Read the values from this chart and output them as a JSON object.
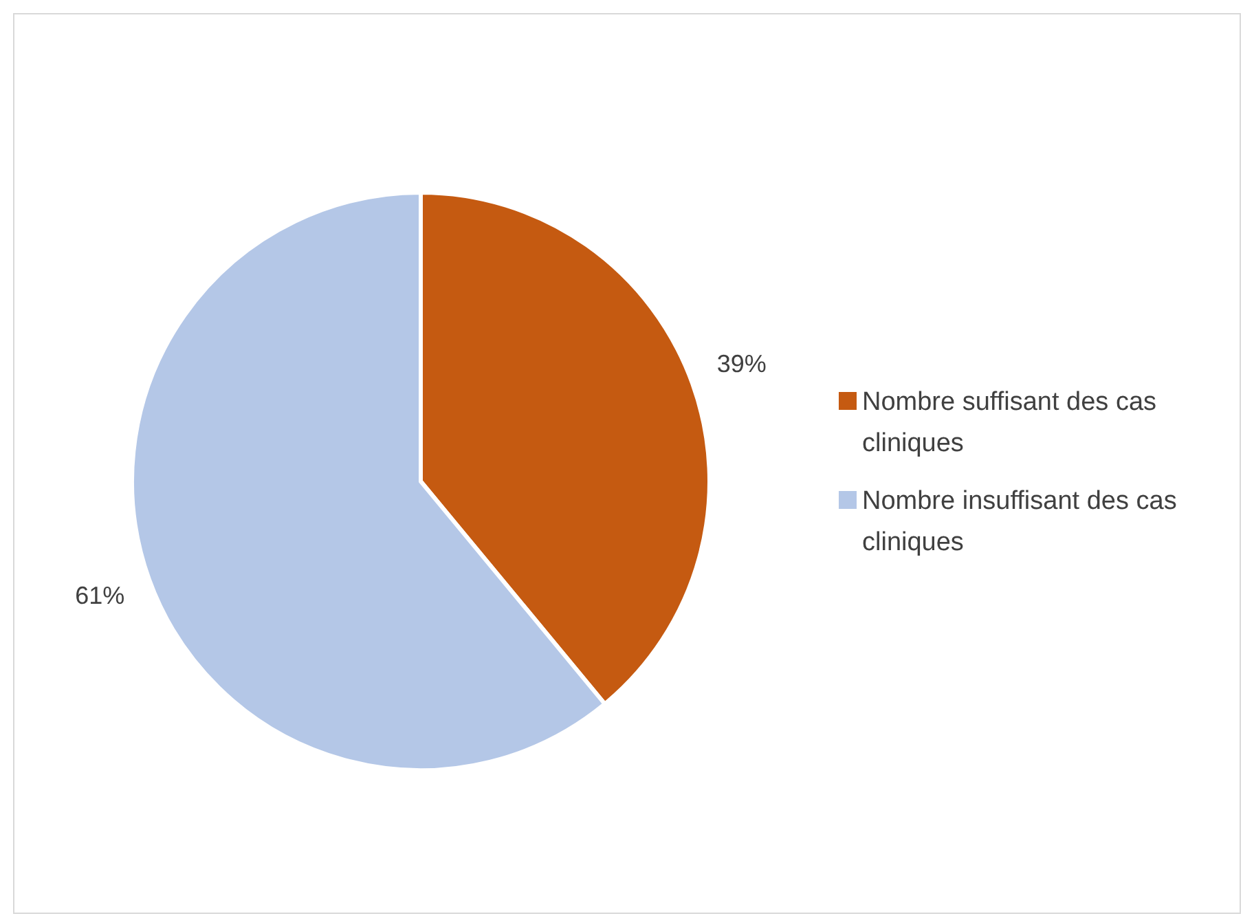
{
  "chart_data": {
    "type": "pie",
    "categories": [
      "Nombre suffisant des cas cliniques",
      "Nombre insuffisant des cas cliniques"
    ],
    "values": [
      39,
      61
    ],
    "colors": [
      "#c55a11",
      "#b4c7e7"
    ],
    "value_labels": [
      "39%",
      "61%"
    ],
    "legend": "right"
  }
}
